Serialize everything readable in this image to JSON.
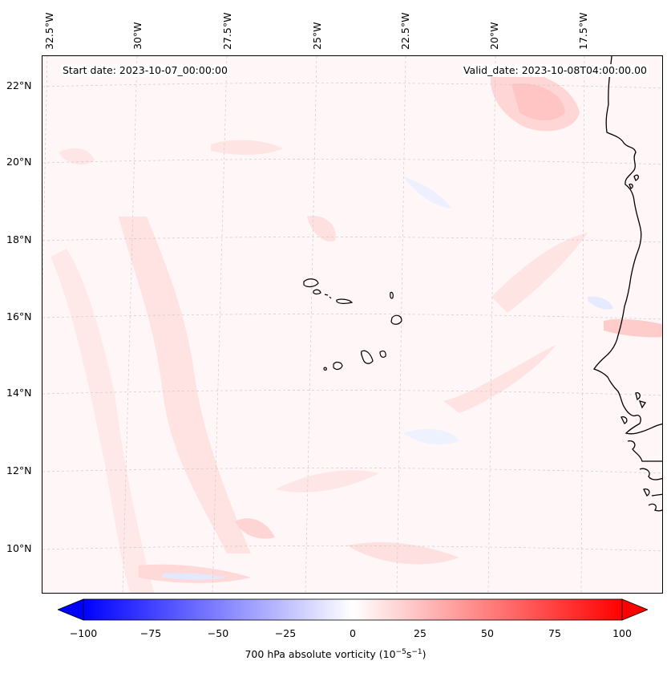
{
  "header": {
    "start_date": "Start date: 2023-10-07_00:00:00",
    "valid_date": "Valid_date: 2023-10-08T04:00:00.00"
  },
  "longitude_labels": [
    "32.5°W",
    "30°W",
    "27.5°W",
    "25°W",
    "22.5°W",
    "20°W",
    "17.5°W"
  ],
  "latitude_labels": [
    "22°N",
    "20°N",
    "18°N",
    "16°N",
    "14°N",
    "12°N",
    "10°N"
  ],
  "colorbar": {
    "min": -100,
    "max": 100,
    "ticks": [
      "−100",
      "−75",
      "−50",
      "−25",
      "0",
      "25",
      "50",
      "75",
      "100"
    ],
    "label_prefix": "700 hPa absolute vorticity (10",
    "label_exp1": "−5",
    "label_mid": "s",
    "label_exp2": "−1",
    "label_suffix": ")",
    "colors": {
      "low": "#0000ff",
      "mid": "#ffffff",
      "high": "#ff0000"
    }
  },
  "map": {
    "background": "#fff7f7",
    "coastline_color": "#000000",
    "gridline_color": "#cccccc"
  }
}
